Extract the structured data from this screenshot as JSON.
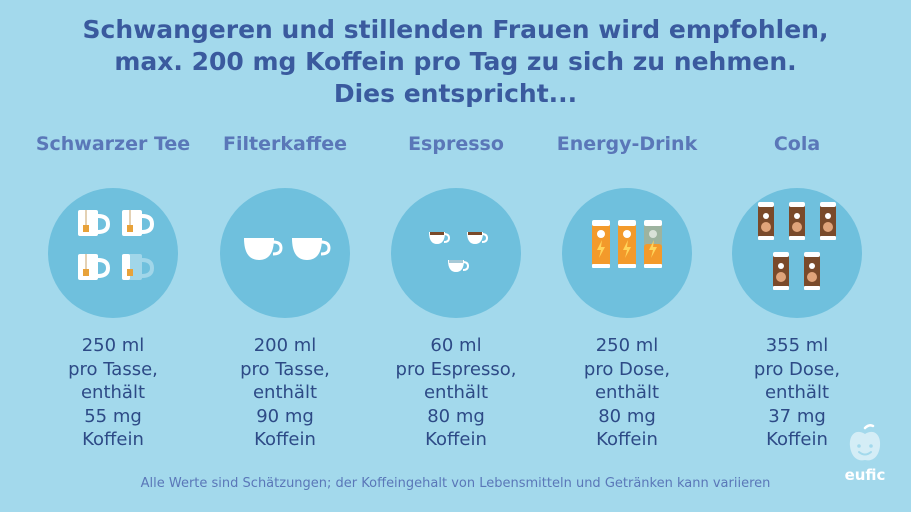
{
  "headline": {
    "line1": "Schwangeren und stillenden Frauen wird empfohlen,",
    "line2": "max. 200 mg Koffein pro Tag zu sich zu nehmen.",
    "line3": "Dies entspricht..."
  },
  "drinks": [
    {
      "title": "Schwarzer Tee",
      "icon": "tea-cups-icon",
      "volume": "250 ml",
      "per": "pro Tasse,",
      "contains": "enthält",
      "amount": "55 mg",
      "unit": "Koffein"
    },
    {
      "title": "Filterkaffee",
      "icon": "coffee-cups-icon",
      "volume": "200 ml",
      "per": "pro Tasse,",
      "contains": "enthält",
      "amount": "90 mg",
      "unit": "Koffein"
    },
    {
      "title": "Espresso",
      "icon": "espresso-cups-icon",
      "volume": "60 ml",
      "per": "pro Espresso,",
      "contains": "enthält",
      "amount": "80 mg",
      "unit": "Koffein"
    },
    {
      "title": "Energy-Drink",
      "icon": "energy-drink-cans-icon",
      "volume": "250 ml",
      "per": "pro Dose,",
      "contains": "enthält",
      "amount": "80 mg",
      "unit": "Koffein"
    },
    {
      "title": "Cola",
      "icon": "cola-cans-icon",
      "volume": "355 ml",
      "per": "pro Dose,",
      "contains": "enthält",
      "amount": "37 mg",
      "unit": "Koffein"
    }
  ],
  "footnote": "Alle Werte sind Schätzungen; der Koffeingehalt von Lebensmitteln und Getränken kann variieren",
  "logo": {
    "text": "eufic",
    "icon": "eufic-logo-icon"
  },
  "colors": {
    "background": "#a3d9ec",
    "circle": "#6fc0dd",
    "headline": "#3a5a9e",
    "titles": "#5a77b8",
    "body_text": "#2d4a86",
    "energy_can": "#f39a2b",
    "cola_can": "#7a4a2a"
  }
}
